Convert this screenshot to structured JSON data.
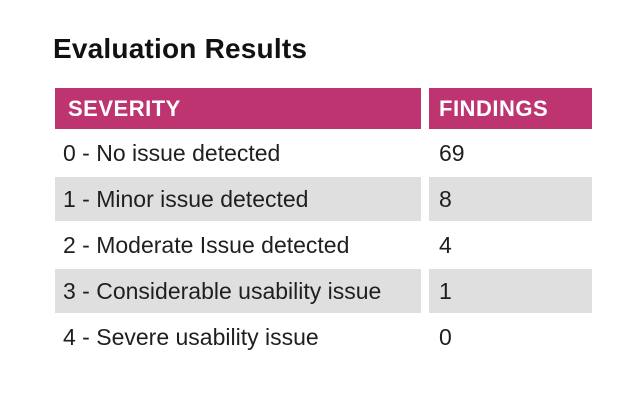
{
  "theme": {
    "header_bg": "#be3470",
    "header_text": "#ffffff",
    "alt_row_bg": "#dfdfdf",
    "row_bg": "#ffffff",
    "body_text": "#1f1f1f",
    "heading_text": "#111111"
  },
  "heading": {
    "title": "Evaluation Results"
  },
  "results_table": {
    "columns": [
      {
        "label": "SEVERITY"
      },
      {
        "label": "FINDINGS"
      }
    ],
    "rows": [
      {
        "severity": "0 - No issue detected",
        "findings": "69"
      },
      {
        "severity": "1 - Minor issue detected",
        "findings": "8"
      },
      {
        "severity": "2 - Moderate Issue detected",
        "findings": "4"
      },
      {
        "severity": "3 - Considerable usability issue",
        "findings": "1"
      },
      {
        "severity": "4 - Severe usability issue",
        "findings": "0"
      }
    ]
  }
}
